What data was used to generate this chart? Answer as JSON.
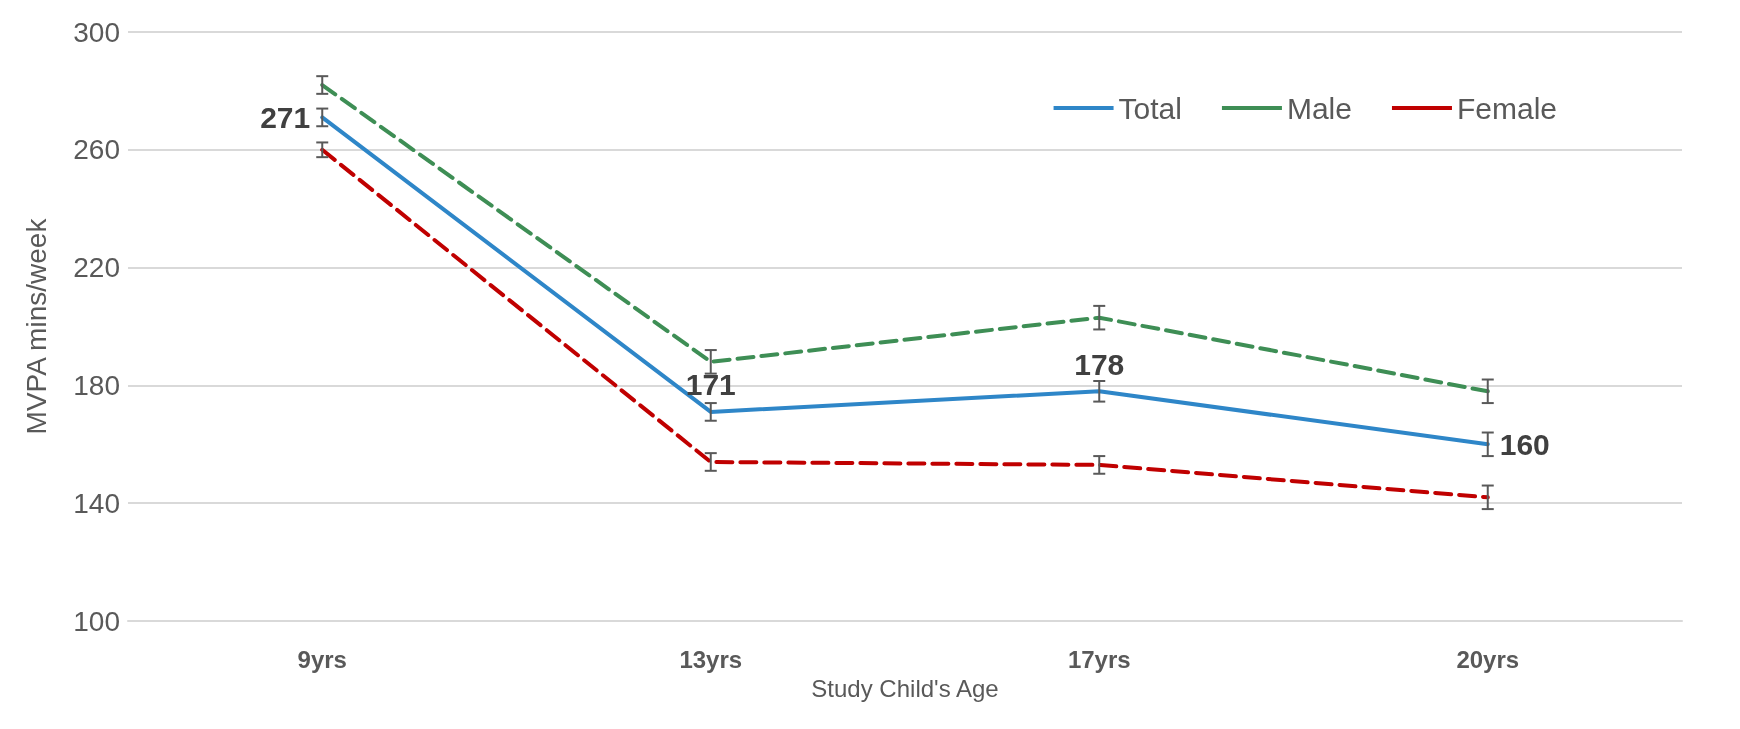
{
  "chart_data": {
    "type": "line",
    "xlabel": "Study Child's Age",
    "ylabel": "MVPA mins/week",
    "categories": [
      "9yrs",
      "13yrs",
      "17yrs",
      "20yrs"
    ],
    "series": [
      {
        "name": "Total",
        "color": "#2e86c8",
        "line_style": "solid",
        "values": [
          271,
          171,
          178,
          160
        ],
        "errors": [
          3,
          3,
          3.5,
          4
        ],
        "value_labels": [
          "271",
          "171",
          "178",
          "160"
        ]
      },
      {
        "name": "Male",
        "color": "#3e8e55",
        "line_style": "dashed",
        "values": [
          282,
          188,
          203,
          178
        ],
        "errors": [
          3,
          4,
          4,
          4
        ]
      },
      {
        "name": "Female",
        "color": "#c00000",
        "line_style": "dashed",
        "values": [
          260,
          154,
          153,
          142
        ],
        "errors": [
          2.5,
          3,
          3,
          4
        ]
      }
    ],
    "ylim": [
      100,
      300
    ],
    "yticks": [
      100,
      140,
      180,
      220,
      260,
      300
    ],
    "grid": "y",
    "legend": "top right",
    "marker": "none"
  }
}
